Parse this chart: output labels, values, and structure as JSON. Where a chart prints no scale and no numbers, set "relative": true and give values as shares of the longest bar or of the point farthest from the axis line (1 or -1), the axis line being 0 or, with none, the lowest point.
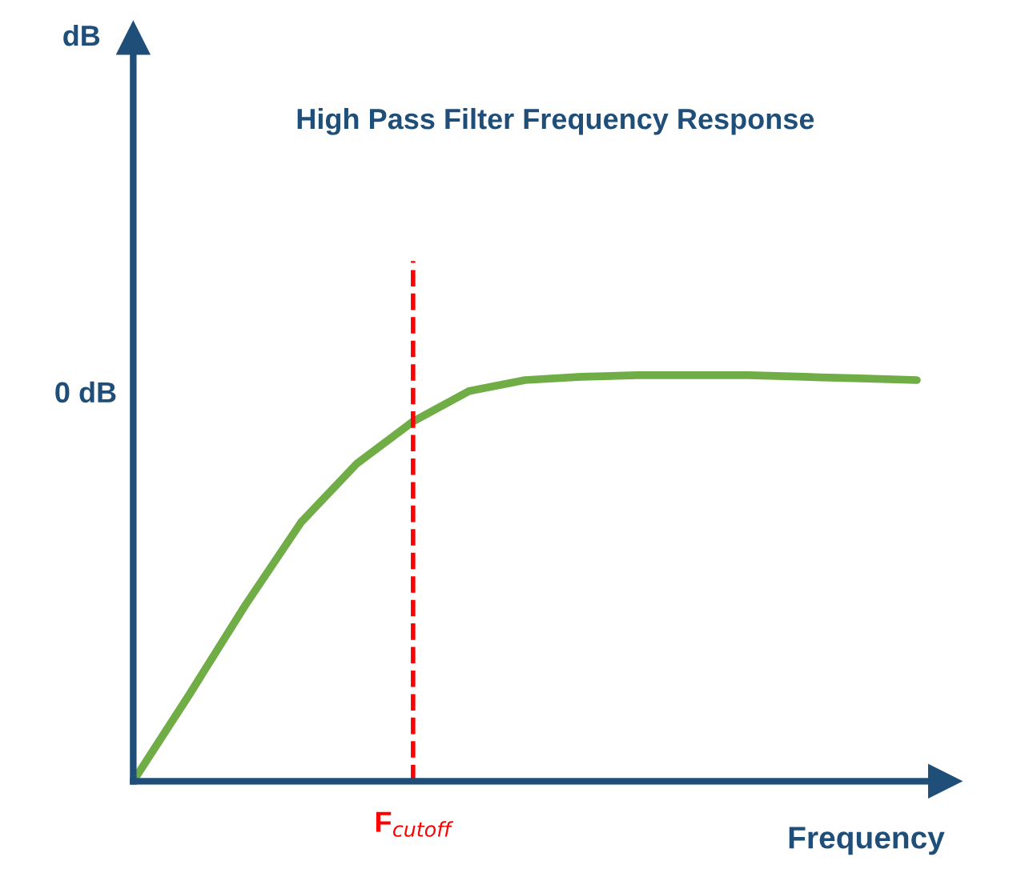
{
  "chart_data": {
    "type": "line",
    "title": "High Pass Filter Frequency Response",
    "xlabel": "Frequency",
    "relative": true,
    "marker": "none",
    "line_style": "solid",
    "categories": [
      null,
      null,
      null,
      null,
      null,
      null,
      null,
      null,
      null,
      null,
      null,
      null,
      null,
      null,
      null
    ],
    "series": [
      {
        "color": "#70ad47",
        "values": [
          0,
          0.213,
          0.433,
          0.638,
          0.783,
          0.886,
          0.961,
          0.988,
          0.996,
          1,
          1,
          1,
          0.996,
          0.992,
          0.988
        ]
      }
    ],
    "annotations": [
      "dB",
      "0 dB",
      "F$_{cutoff}$"
    ]
  }
}
